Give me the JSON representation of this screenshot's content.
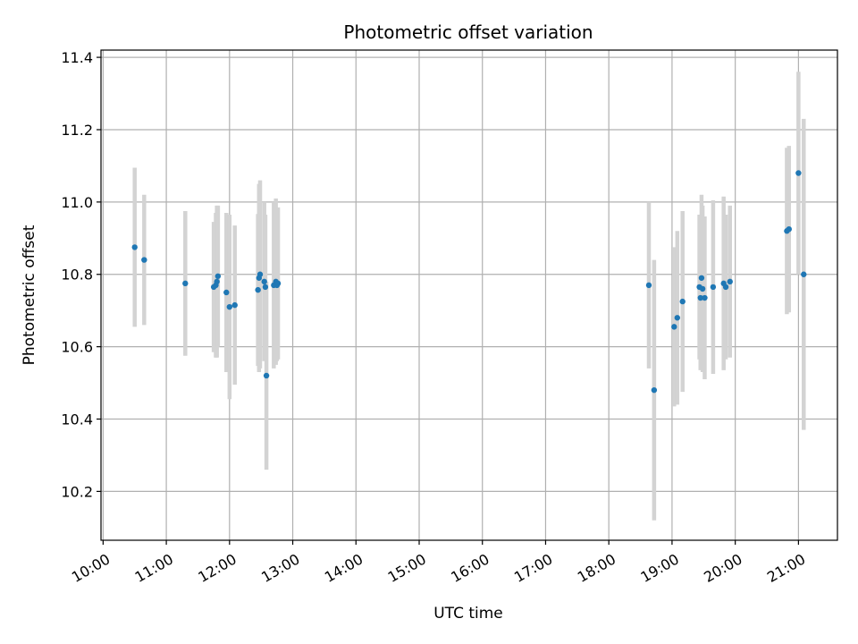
{
  "chart_data": {
    "type": "scatter",
    "title": "Photometric offset variation",
    "xlabel": "UTC time",
    "ylabel": "Photometric offset",
    "grid": true,
    "xlim": [
      "09:58",
      "21:37"
    ],
    "ylim": [
      10.065,
      11.42
    ],
    "x_ticks": [
      "10:00",
      "11:00",
      "12:00",
      "13:00",
      "14:00",
      "15:00",
      "16:00",
      "17:00",
      "18:00",
      "19:00",
      "20:00",
      "21:00"
    ],
    "y_ticks": [
      10.2,
      10.4,
      10.6,
      10.8,
      11.0,
      11.2,
      11.4
    ],
    "colors": {
      "point": "#1f77b4",
      "errorbar": "#d3d3d3",
      "grid": "#b0b0b0"
    },
    "points": [
      {
        "x": "10:30",
        "y": 10.875,
        "err": 0.22
      },
      {
        "x": "10:39",
        "y": 10.84,
        "err": 0.18
      },
      {
        "x": "11:18",
        "y": 10.775,
        "err": 0.2
      },
      {
        "x": "11:45",
        "y": 10.765,
        "err": 0.18
      },
      {
        "x": "11:47",
        "y": 10.77,
        "err": 0.2
      },
      {
        "x": "11:48",
        "y": 10.78,
        "err": 0.21
      },
      {
        "x": "11:49",
        "y": 10.795,
        "err": 0.195
      },
      {
        "x": "11:57",
        "y": 10.75,
        "err": 0.22
      },
      {
        "x": "12:00",
        "y": 10.71,
        "err": 0.255
      },
      {
        "x": "12:05",
        "y": 10.715,
        "err": 0.22
      },
      {
        "x": "12:27",
        "y": 10.757,
        "err": 0.21
      },
      {
        "x": "12:28",
        "y": 10.79,
        "err": 0.26
      },
      {
        "x": "12:29",
        "y": 10.8,
        "err": 0.26
      },
      {
        "x": "12:33",
        "y": 10.78,
        "err": 0.22
      },
      {
        "x": "12:34",
        "y": 10.765,
        "err": 0.2
      },
      {
        "x": "12:35",
        "y": 10.52,
        "err": 0.26
      },
      {
        "x": "12:42",
        "y": 10.77,
        "err": 0.23
      },
      {
        "x": "12:44",
        "y": 10.78,
        "err": 0.23
      },
      {
        "x": "12:45",
        "y": 10.77,
        "err": 0.21
      },
      {
        "x": "12:46",
        "y": 10.775,
        "err": 0.21
      },
      {
        "x": "18:38",
        "y": 10.77,
        "err": 0.23
      },
      {
        "x": "18:43",
        "y": 10.48,
        "err": 0.36
      },
      {
        "x": "19:02",
        "y": 10.655,
        "err": 0.22
      },
      {
        "x": "19:05",
        "y": 10.68,
        "err": 0.24
      },
      {
        "x": "19:10",
        "y": 10.725,
        "err": 0.25
      },
      {
        "x": "19:26",
        "y": 10.765,
        "err": 0.2
      },
      {
        "x": "19:27",
        "y": 10.735,
        "err": 0.2
      },
      {
        "x": "19:28",
        "y": 10.79,
        "err": 0.23
      },
      {
        "x": "19:29",
        "y": 10.76,
        "err": 0.23
      },
      {
        "x": "19:31",
        "y": 10.735,
        "err": 0.225
      },
      {
        "x": "19:39",
        "y": 10.765,
        "err": 0.24
      },
      {
        "x": "19:49",
        "y": 10.775,
        "err": 0.24
      },
      {
        "x": "19:51",
        "y": 10.765,
        "err": 0.2
      },
      {
        "x": "19:55",
        "y": 10.78,
        "err": 0.21
      },
      {
        "x": "20:49",
        "y": 10.92,
        "err": 0.23
      },
      {
        "x": "20:51",
        "y": 10.925,
        "err": 0.23
      },
      {
        "x": "21:00",
        "y": 11.08,
        "err": 0.28
      },
      {
        "x": "21:05",
        "y": 10.8,
        "err": 0.43
      }
    ]
  }
}
